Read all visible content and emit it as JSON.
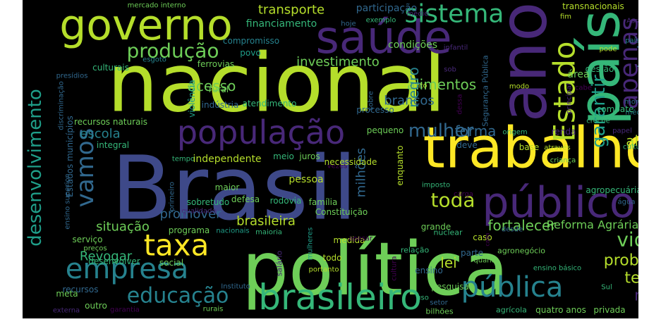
{
  "palette": {
    "background": "#000000",
    "yellow": "#fde725",
    "lime": "#b5de2b",
    "green": "#6ece58",
    "teal_green": "#35b779",
    "teal": "#1f9e89",
    "cyan": "#26828e",
    "blue": "#31688e",
    "indigo": "#3e4989",
    "purple": "#482878",
    "dark_purple": "#440154"
  },
  "words": [
    {
      "text": "Brasil",
      "color": "#3e4989"
    },
    {
      "text": "nacional",
      "color": "#b5de2b"
    },
    {
      "text": "política",
      "color": "#6ece58"
    },
    {
      "text": "ano",
      "color": "#482878"
    },
    {
      "text": "país",
      "color": "#35b779"
    },
    {
      "text": "trabalho",
      "color": "#fde725"
    },
    {
      "text": "saúde",
      "color": "#482878"
    },
    {
      "text": "governo",
      "color": "#b5de2b"
    },
    {
      "text": "público",
      "color": "#482878"
    },
    {
      "text": "população",
      "color": "#482878"
    },
    {
      "text": "brasileiro",
      "color": "#35b779"
    },
    {
      "text": "Estado",
      "color": "#b5de2b"
    },
    {
      "text": "empresa",
      "color": "#26828e"
    },
    {
      "text": "taxa",
      "color": "#fde725"
    },
    {
      "text": "pública",
      "color": "#26828e"
    },
    {
      "text": "educação",
      "color": "#26828e"
    },
    {
      "text": "sistema",
      "color": "#35b779"
    },
    {
      "text": "apenas",
      "color": "#482878"
    },
    {
      "text": "produção",
      "color": "#6ece58"
    },
    {
      "text": "vamos",
      "color": "#31688e"
    },
    {
      "text": "desenvolvimento",
      "color": "#1f9e89"
    },
    {
      "text": "garantir",
      "color": "#1f9e89"
    },
    {
      "text": "tecnologia",
      "color": "#31688e"
    },
    {
      "text": "mulher",
      "color": "#31688e"
    },
    {
      "text": "vida",
      "color": "#6ece58"
    },
    {
      "text": "toda",
      "color": "#b5de2b"
    },
    {
      "text": "problema",
      "color": "#b5de2b"
    },
    {
      "text": "terra",
      "color": "#b5de2b"
    },
    {
      "text": "mil",
      "color": "#482878"
    },
    {
      "text": "alimentos",
      "color": "#6ece58"
    },
    {
      "text": "investimento",
      "color": "#6ece58"
    },
    {
      "text": "transporte",
      "color": "#b5de2b"
    },
    {
      "text": "financiamento",
      "color": "#35b779"
    },
    {
      "text": "brancos",
      "color": "#31688e"
    },
    {
      "text": "negro",
      "color": "#26828e"
    },
    {
      "text": "acesso",
      "color": "#6ece58"
    },
    {
      "text": "forma",
      "color": "#31688e"
    },
    {
      "text": "além",
      "color": "#b5de2b"
    },
    {
      "text": "fortalecer",
      "color": "#6ece58"
    },
    {
      "text": "lei",
      "color": "#b5de2b"
    },
    {
      "text": "situação",
      "color": "#6ece58"
    },
    {
      "text": "promover",
      "color": "#31688e"
    },
    {
      "text": "brasileira",
      "color": "#b5de2b"
    },
    {
      "text": "escola",
      "color": "#26828e"
    },
    {
      "text": "Revogar",
      "color": "#35b779"
    },
    {
      "text": "milhões",
      "color": "#31688e"
    },
    {
      "text": "Reforma Agrária",
      "color": "#6ece58"
    },
    {
      "text": "participação",
      "color": "#31688e"
    },
    {
      "text": "compromisso",
      "color": "#26828e"
    },
    {
      "text": "povo",
      "color": "#1f9e89"
    },
    {
      "text": "ferrovias",
      "color": "#6ece58"
    },
    {
      "text": "culturais",
      "color": "#35b779"
    },
    {
      "text": "esgoto",
      "color": "#26828e"
    },
    {
      "text": "presídios",
      "color": "#31688e"
    },
    {
      "text": "mercado interno",
      "color": "#6ece58"
    },
    {
      "text": "hoje",
      "color": "#31688e"
    },
    {
      "text": "médio",
      "color": "#482878"
    },
    {
      "text": "exemplo",
      "color": "#35b779"
    },
    {
      "text": "condições",
      "color": "#6ece58"
    },
    {
      "text": "infantil",
      "color": "#482878"
    },
    {
      "text": "transnacionais",
      "color": "#b5de2b"
    },
    {
      "text": "fim",
      "color": "#b5de2b"
    },
    {
      "text": "países",
      "color": "#26828e"
    },
    {
      "text": "Assim",
      "color": "#482878"
    },
    {
      "text": "pode",
      "color": "#b5de2b"
    },
    {
      "text": "gestão",
      "color": "#35b779"
    },
    {
      "text": "Segurança Pública",
      "color": "#31688e"
    },
    {
      "text": "principal",
      "color": "#482878"
    },
    {
      "text": "área",
      "color": "#6ece58"
    },
    {
      "text": "morte",
      "color": "#31688e"
    },
    {
      "text": "média",
      "color": "#26828e"
    },
    {
      "text": "combate",
      "color": "#35b779"
    },
    {
      "text": "cabe",
      "color": "#440154"
    },
    {
      "text": "modo",
      "color": "#b5de2b"
    },
    {
      "text": "entanto",
      "color": "#b5de2b"
    },
    {
      "text": "sob",
      "color": "#482878"
    },
    {
      "text": "sobre",
      "color": "#31688e"
    },
    {
      "text": "dessa",
      "color": "#440154"
    },
    {
      "text": "creche",
      "color": "#35b779"
    },
    {
      "text": "papel",
      "color": "#482878"
    },
    {
      "text": "cultural",
      "color": "#35b779"
    },
    {
      "text": "criança",
      "color": "#6ece58"
    },
    {
      "text": "origem",
      "color": "#35b779"
    },
    {
      "text": "renda",
      "color": "#482878"
    },
    {
      "text": "através",
      "color": "#b5de2b"
    },
    {
      "text": "base",
      "color": "#b5de2b"
    },
    {
      "text": "deve",
      "color": "#31688e"
    },
    {
      "text": "processo",
      "color": "#31688e"
    },
    {
      "text": "pequeno",
      "color": "#6ece58"
    },
    {
      "text": "atendimento",
      "color": "#35b779"
    },
    {
      "text": "indústria",
      "color": "#31688e"
    },
    {
      "text": "rural",
      "color": "#6ece58"
    },
    {
      "text": "violência",
      "color": "#1f9e89"
    },
    {
      "text": "discriminação",
      "color": "#31688e"
    },
    {
      "text": "recursos naturais",
      "color": "#6ece58"
    },
    {
      "text": "Estados municípios",
      "color": "#31688e"
    },
    {
      "text": "integral",
      "color": "#35b779"
    },
    {
      "text": "ensino superior",
      "color": "#31688e"
    },
    {
      "text": "tempo",
      "color": "#35b779"
    },
    {
      "text": "independente",
      "color": "#b5de2b"
    },
    {
      "text": "meio",
      "color": "#35b779"
    },
    {
      "text": "juros",
      "color": "#6ece58"
    },
    {
      "text": "vezes",
      "color": "#440154"
    },
    {
      "text": "necessidade",
      "color": "#b5de2b"
    },
    {
      "text": "enquanto",
      "color": "#b5de2b"
    },
    {
      "text": "pessoa",
      "color": "#b5de2b"
    },
    {
      "text": "maior",
      "color": "#6ece58"
    },
    {
      "text": "primeiro",
      "color": "#31688e"
    },
    {
      "text": "sobretudo",
      "color": "#35b779"
    },
    {
      "text": "defesa",
      "color": "#6ece58"
    },
    {
      "text": "rodovia",
      "color": "#35b779"
    },
    {
      "text": "família",
      "color": "#6ece58"
    },
    {
      "text": "qualidade",
      "color": "#482878"
    },
    {
      "text": "imposto",
      "color": "#35b779"
    },
    {
      "text": "carga",
      "color": "#440154"
    },
    {
      "text": "agropecuária",
      "color": "#35b779"
    },
    {
      "text": "água",
      "color": "#31688e"
    },
    {
      "text": "Constituição",
      "color": "#6ece58"
    },
    {
      "text": "programa",
      "color": "#6ece58"
    },
    {
      "text": "nacionais",
      "color": "#1f9e89"
    },
    {
      "text": "maioria",
      "color": "#35b779"
    },
    {
      "text": "serviço",
      "color": "#6ece58"
    },
    {
      "text": "preços",
      "color": "#6ece58"
    },
    {
      "text": "desenvolver",
      "color": "#35b779"
    },
    {
      "text": "social",
      "color": "#6ece58"
    },
    {
      "text": "salário",
      "color": "#482878"
    },
    {
      "text": "mulheres",
      "color": "#1f9e89"
    },
    {
      "text": "medida",
      "color": "#b5de2b"
    },
    {
      "text": "apesar",
      "color": "#440154"
    },
    {
      "text": "relação",
      "color": "#35b779"
    },
    {
      "text": "grande",
      "color": "#6ece58"
    },
    {
      "text": "nuclear",
      "color": "#35b779"
    },
    {
      "text": "caso",
      "color": "#b5de2b"
    },
    {
      "text": "desde",
      "color": "#31688e"
    },
    {
      "text": "cada",
      "color": "#440154"
    },
    {
      "text": "parte",
      "color": "#31688e"
    },
    {
      "text": "agronegócio",
      "color": "#6ece58"
    },
    {
      "text": "ensino básico",
      "color": "#35b779"
    },
    {
      "text": "recursos",
      "color": "#31688e"
    },
    {
      "text": "Instituto",
      "color": "#31688e"
    },
    {
      "text": "todo",
      "color": "#b5de2b"
    },
    {
      "text": "portanto",
      "color": "#b5de2b"
    },
    {
      "text": "ensino",
      "color": "#31688e"
    },
    {
      "text": "quanto",
      "color": "#6ece58"
    },
    {
      "text": "cultura",
      "color": "#440154"
    },
    {
      "text": "pesquisa",
      "color": "#6ece58"
    },
    {
      "text": "uso",
      "color": "#35b779"
    },
    {
      "text": "setor",
      "color": "#31688e"
    },
    {
      "text": "bilhões",
      "color": "#6ece58"
    },
    {
      "text": "agrícola",
      "color": "#35b779"
    },
    {
      "text": "quatro anos",
      "color": "#6ece58"
    },
    {
      "text": "privada",
      "color": "#6ece58"
    },
    {
      "text": "Sul",
      "color": "#35b779"
    },
    {
      "text": "meta",
      "color": "#6ece58"
    },
    {
      "text": "outro",
      "color": "#6ece58"
    },
    {
      "text": "externa",
      "color": "#482878"
    },
    {
      "text": "garantia",
      "color": "#440154"
    },
    {
      "text": "rurais",
      "color": "#6ece58"
    }
  ]
}
